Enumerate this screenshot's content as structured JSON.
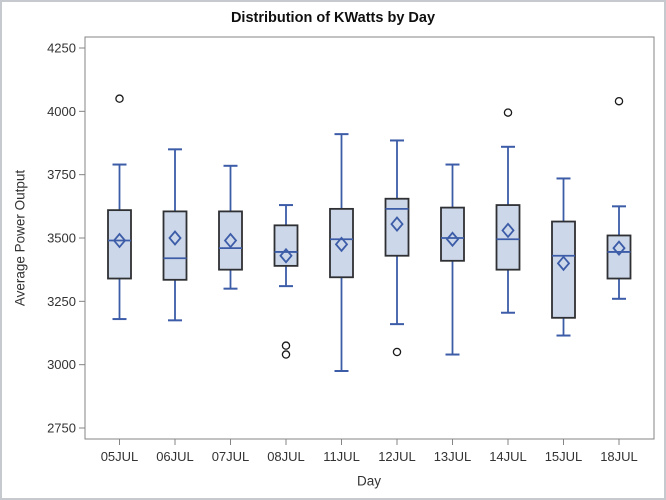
{
  "chart_data": {
    "type": "box",
    "title": "Distribution of KWatts by Day",
    "xlabel": "Day",
    "ylabel": "Average Power Output",
    "ylim": [
      2750,
      4250
    ],
    "y_ticks": [
      2750,
      3000,
      3250,
      3500,
      3750,
      4000,
      4250
    ],
    "categories": [
      "05JUL",
      "06JUL",
      "07JUL",
      "08JUL",
      "11JUL",
      "12JUL",
      "13JUL",
      "14JUL",
      "15JUL",
      "18JUL"
    ],
    "series": [
      {
        "category": "05JUL",
        "whisker_low": 3180,
        "q1": 3340,
        "median": 3490,
        "mean": 3490,
        "q3": 3610,
        "whisker_high": 3790,
        "outliers": [
          4050
        ]
      },
      {
        "category": "06JUL",
        "whisker_low": 3175,
        "q1": 3335,
        "median": 3420,
        "mean": 3500,
        "q3": 3605,
        "whisker_high": 3850,
        "outliers": []
      },
      {
        "category": "07JUL",
        "whisker_low": 3300,
        "q1": 3375,
        "median": 3460,
        "mean": 3490,
        "q3": 3605,
        "whisker_high": 3785,
        "outliers": []
      },
      {
        "category": "08JUL",
        "whisker_low": 3310,
        "q1": 3390,
        "median": 3445,
        "mean": 3430,
        "q3": 3550,
        "whisker_high": 3630,
        "outliers": [
          3075,
          3040
        ]
      },
      {
        "category": "11JUL",
        "whisker_low": 2975,
        "q1": 3345,
        "median": 3495,
        "mean": 3475,
        "q3": 3615,
        "whisker_high": 3910,
        "outliers": []
      },
      {
        "category": "12JUL",
        "whisker_low": 3160,
        "q1": 3430,
        "median": 3615,
        "mean": 3555,
        "q3": 3655,
        "whisker_high": 3885,
        "outliers": [
          3050
        ]
      },
      {
        "category": "13JUL",
        "whisker_low": 3040,
        "q1": 3410,
        "median": 3500,
        "mean": 3495,
        "q3": 3620,
        "whisker_high": 3790,
        "outliers": []
      },
      {
        "category": "14JUL",
        "whisker_low": 3205,
        "q1": 3375,
        "median": 3495,
        "mean": 3530,
        "q3": 3630,
        "whisker_high": 3860,
        "outliers": [
          3995
        ]
      },
      {
        "category": "15JUL",
        "whisker_low": 3115,
        "q1": 3185,
        "median": 3430,
        "mean": 3400,
        "q3": 3565,
        "whisker_high": 3735,
        "outliers": []
      },
      {
        "category": "18JUL",
        "whisker_low": 3260,
        "q1": 3340,
        "median": 3445,
        "mean": 3460,
        "q3": 3510,
        "whisker_high": 3625,
        "outliers": [
          4040
        ]
      }
    ],
    "legend": null,
    "grid": false,
    "colors": {
      "box_fill": "#ccd7e9",
      "box_border": "#2f3033",
      "whisker": "#3c5ca8",
      "median": "#3c5ca8",
      "mean_marker": "#3c5ca8",
      "outlier": "#1a1a1a",
      "axis": "#848484",
      "text": "#333333"
    }
  }
}
